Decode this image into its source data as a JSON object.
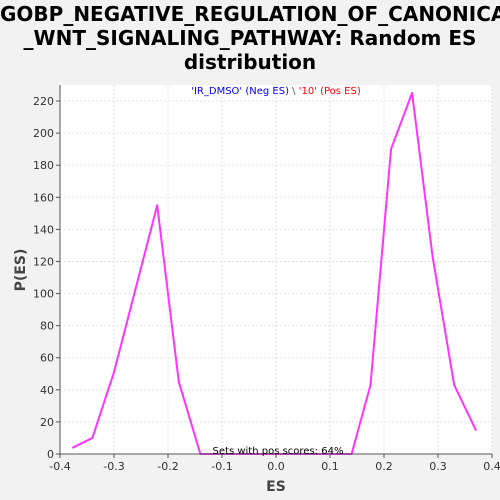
{
  "chart_data": {
    "type": "line",
    "title_lines": [
      "GOBP_NEGATIVE_REGULATION_OF_CANONICAL",
      "_WNT_SIGNALING_PATHWAY: Random ES",
      "distribution"
    ],
    "xlabel": "ES",
    "ylabel": "P(ES)",
    "xlim": [
      -0.4,
      0.4
    ],
    "ylim": [
      0,
      230
    ],
    "x_ticks": [
      -0.4,
      -0.3,
      -0.2,
      -0.1,
      0.0,
      0.1,
      0.2,
      0.3,
      0.4
    ],
    "x_tick_labels": [
      "-0.4",
      "-0.3",
      "-0.2",
      "-0.1",
      "0.0",
      "0.1",
      "0.2",
      "0.3",
      "0.4"
    ],
    "y_ticks": [
      0,
      20,
      40,
      60,
      80,
      100,
      120,
      140,
      160,
      180,
      200,
      220
    ],
    "y_tick_labels": [
      "0",
      "20",
      "40",
      "60",
      "80",
      "100",
      "120",
      "140",
      "160",
      "180",
      "200",
      "220"
    ],
    "grid": true,
    "legend_text": {
      "neg": "'IR_DMSO' (Neg ES)",
      "sep": " \\ ",
      "pos": "'10' (Pos ES)"
    },
    "legend_colors": {
      "neg": "#0000ff",
      "pos": "#ff0000"
    },
    "annotation": "Sets with pos scores: 64%",
    "series": [
      {
        "color": "#ff33ff",
        "x": [
          -0.376,
          -0.34,
          -0.3,
          -0.26,
          -0.22,
          -0.18,
          -0.14,
          -0.1,
          -0.06,
          -0.02,
          0.02,
          0.06,
          0.1,
          0.14,
          0.175,
          0.213,
          0.252,
          0.29,
          0.33,
          0.37
        ],
        "y": [
          4,
          10,
          51,
          103,
          155,
          45,
          0,
          0,
          0,
          0,
          0,
          0,
          0,
          0,
          43,
          190,
          225,
          123,
          43,
          15
        ]
      }
    ]
  }
}
